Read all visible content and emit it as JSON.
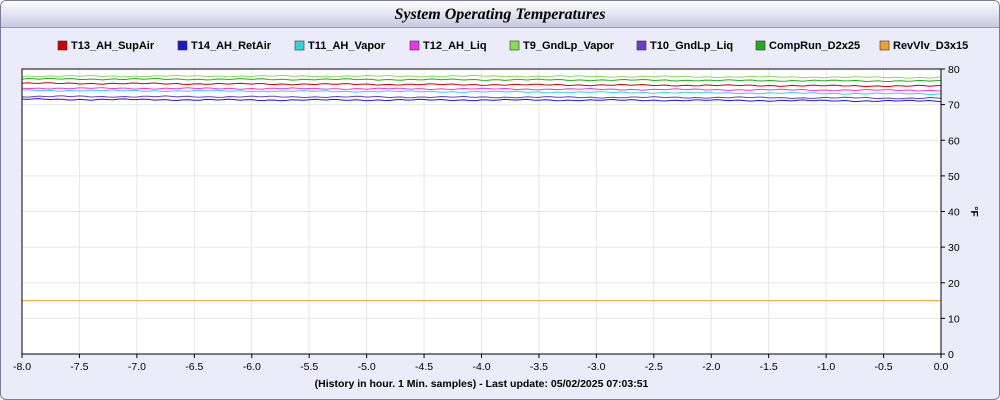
{
  "chart_data": {
    "type": "line",
    "title": "System Operating Temperatures",
    "xlabel": "(History in hour. 1 Min. samples) - Last update: 05/02/2025 07:03:51",
    "ylabel": "°F",
    "xlim": [
      -8.0,
      0.0
    ],
    "ylim": [
      0,
      80
    ],
    "x_ticks": [
      "-8.0",
      "-7.5",
      "-7.0",
      "-6.5",
      "-6.0",
      "-5.5",
      "-5.0",
      "-4.5",
      "-4.0",
      "-3.5",
      "-3.0",
      "-2.5",
      "-2.0",
      "-1.5",
      "-1.0",
      "-0.5",
      "0.0"
    ],
    "y_ticks": [
      "0",
      "10",
      "20",
      "30",
      "40",
      "50",
      "60",
      "70",
      "80"
    ],
    "grid": true,
    "legend_position": "top",
    "series": [
      {
        "name": "T13_AH_SupAir",
        "color": "#cc0000",
        "x": [
          -8,
          -6,
          -4,
          -2,
          0
        ],
        "values": [
          76.0,
          75.8,
          75.6,
          75.4,
          75.2
        ]
      },
      {
        "name": "T14_AH_RetAir",
        "color": "#1a1acc",
        "x": [
          -8,
          -6,
          -4,
          -2,
          0
        ],
        "values": [
          71.5,
          71.3,
          71.3,
          71.2,
          71.0
        ]
      },
      {
        "name": "T11_AH_Vapor",
        "color": "#33d6d6",
        "x": [
          -8,
          -6,
          -4,
          -2,
          0
        ],
        "values": [
          74.0,
          73.8,
          73.6,
          73.3,
          73.0
        ]
      },
      {
        "name": "T12_AH_Liq",
        "color": "#ee33ee",
        "x": [
          -8,
          -6,
          -4,
          -2,
          0
        ],
        "values": [
          74.6,
          74.5,
          74.4,
          74.2,
          74.0
        ]
      },
      {
        "name": "T9_GndLp_Vapor",
        "color": "#88dd55",
        "x": [
          -8,
          -6,
          -4,
          -2,
          0
        ],
        "values": [
          78.0,
          78.0,
          78.0,
          77.8,
          77.6
        ]
      },
      {
        "name": "T10_GndLp_Liq",
        "color": "#6a3ccc",
        "x": [
          -8,
          -6,
          -4,
          -2,
          0
        ],
        "values": [
          72.3,
          72.2,
          72.1,
          72.0,
          71.8
        ]
      },
      {
        "name": "CompRun_D2x25",
        "color": "#22aa22",
        "x": [
          -8,
          -6,
          -4,
          -2,
          0
        ],
        "values": [
          77.2,
          77.1,
          77.0,
          76.8,
          76.6
        ]
      },
      {
        "name": "RevVlv_D3x15",
        "color": "#f0a030",
        "x": [
          -8,
          -6,
          -4,
          -2,
          0
        ],
        "values": [
          15.0,
          15.0,
          15.0,
          15.0,
          15.0
        ]
      }
    ]
  }
}
